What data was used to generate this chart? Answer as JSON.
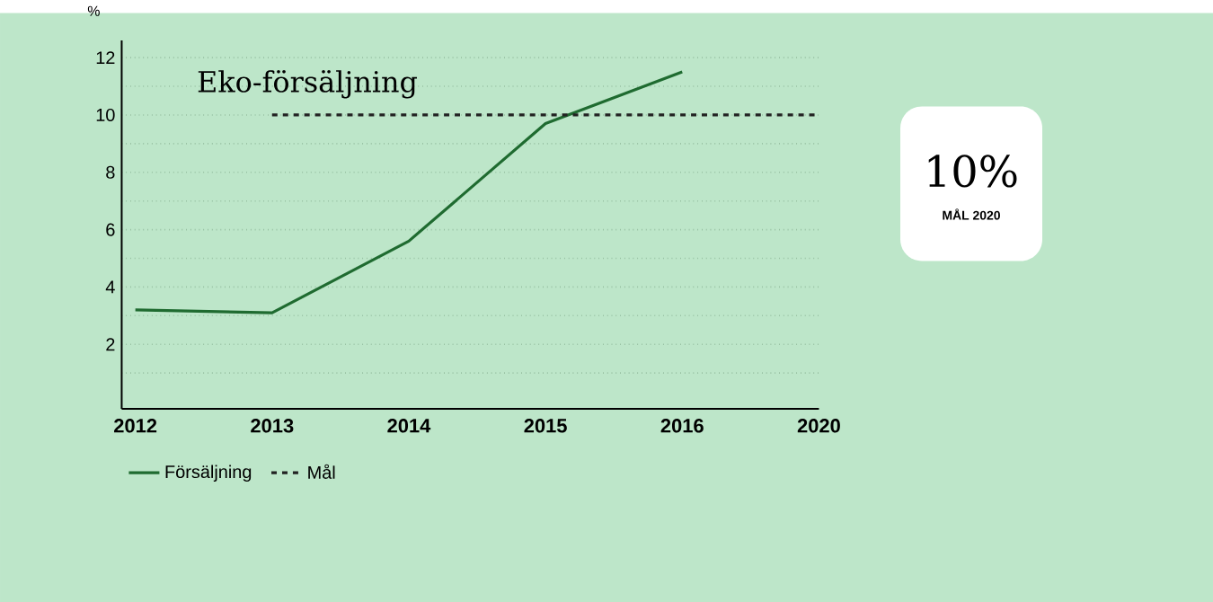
{
  "chart_data": {
    "type": "line",
    "title": "Eko-försäljning",
    "ylabel": "%",
    "categories": [
      "2012",
      "2013",
      "2014",
      "2015",
      "2016",
      "2020"
    ],
    "series": [
      {
        "name": "Försäljning",
        "color": "#1f6b30",
        "values": [
          3.2,
          3.1,
          5.6,
          9.7,
          11.5,
          null
        ],
        "line_style": "solid"
      },
      {
        "name": "Mål",
        "color": "#222222",
        "values": [
          null,
          10,
          10,
          10,
          10,
          10
        ],
        "line_style": "dashed"
      }
    ],
    "ylim": [
      -0.25,
      12.6
    ],
    "yticks": [
      {
        "value": 1,
        "label": null
      },
      2,
      {
        "value": 3,
        "label": null
      },
      4,
      {
        "value": 5,
        "label": null
      },
      6,
      {
        "value": 7,
        "label": null
      },
      8,
      {
        "value": 9,
        "label": null
      },
      10,
      {
        "value": 11,
        "label": null
      },
      12
    ],
    "grid": "y",
    "legend": "bottom left",
    "annotations": [
      "10%",
      "MÅL 2020"
    ]
  }
}
